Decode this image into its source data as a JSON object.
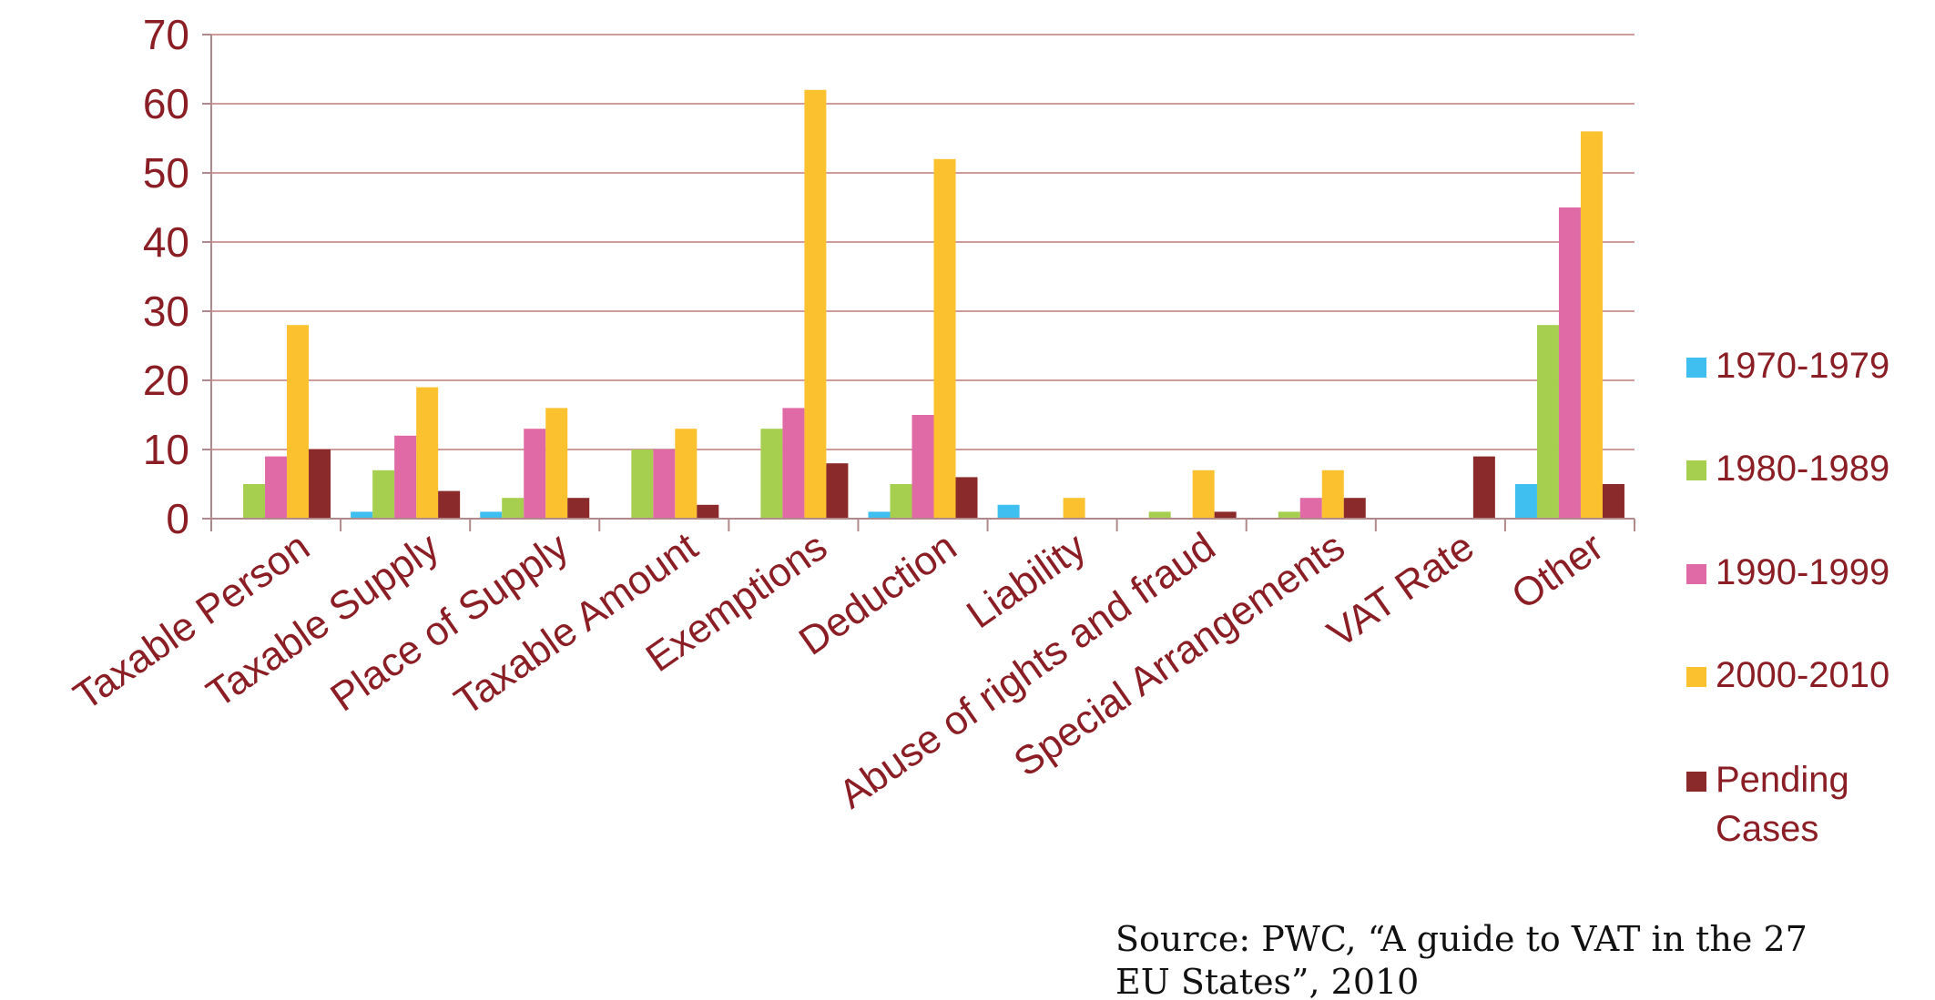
{
  "chart_data": {
    "type": "bar",
    "categories": [
      "Taxable Person",
      "Taxable Supply",
      "Place of Supply",
      "Taxable Amount",
      "Exemptions",
      "Deduction",
      "Liability",
      "Abuse of rights and fraud",
      "Special Arrangements",
      "VAT Rate",
      "Other"
    ],
    "series": [
      {
        "name": "1970-1979",
        "color": "#3fbfef",
        "values": [
          0,
          1,
          1,
          0,
          0,
          1,
          2,
          0,
          0,
          0,
          5
        ]
      },
      {
        "name": "1980-1989",
        "color": "#a6cf4f",
        "values": [
          5,
          7,
          3,
          10,
          13,
          5,
          0,
          1,
          1,
          0,
          28
        ]
      },
      {
        "name": "1990-1999",
        "color": "#e06aa5",
        "values": [
          9,
          12,
          13,
          10,
          16,
          15,
          0,
          0,
          3,
          0,
          45
        ]
      },
      {
        "name": "2000-2010",
        "color": "#fbc12e",
        "values": [
          28,
          19,
          16,
          13,
          62,
          52,
          3,
          7,
          7,
          0,
          56
        ]
      },
      {
        "name": "Pending Cases",
        "color": "#8b2a2a",
        "values": [
          10,
          4,
          3,
          2,
          8,
          6,
          0,
          1,
          3,
          9,
          5
        ]
      }
    ],
    "ylim": [
      0,
      70
    ],
    "yticks": [
      "0",
      "10",
      "20",
      "30",
      "40",
      "50",
      "60",
      "70"
    ],
    "grid": true,
    "legend_position": "right",
    "title": "",
    "xlabel": "",
    "ylabel": ""
  },
  "source_note": {
    "line1": "Source: PWC, “A guide to VAT in the 27",
    "line2": "EU States”, 2010"
  }
}
